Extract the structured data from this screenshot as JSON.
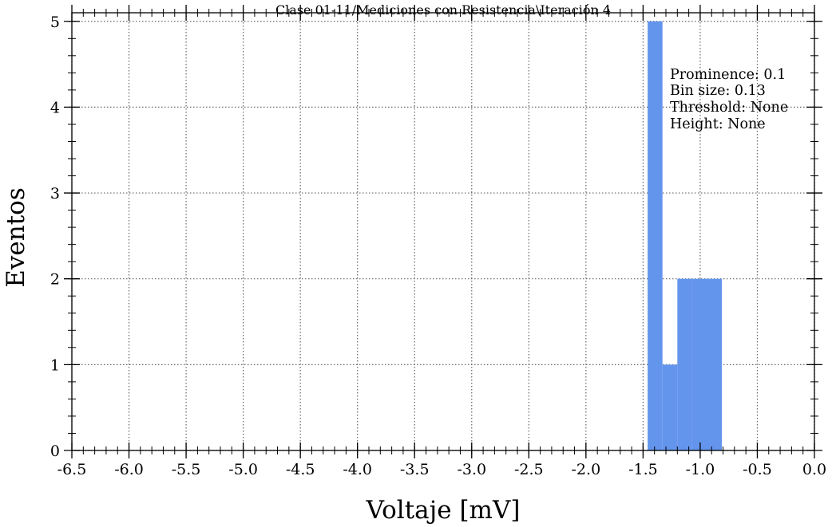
{
  "chart_data": {
    "type": "bar",
    "title": "Clase 01-11/Mediciones con Resistencia\\Iteración 4",
    "xlabel": "Voltaje [mV]",
    "ylabel": "Eventos",
    "xlim": [
      -6.5,
      0.0
    ],
    "ylim": [
      0,
      5.1
    ],
    "xticks": [
      -6.5,
      -6.0,
      -5.5,
      -5.0,
      -4.5,
      -4.0,
      -3.5,
      -3.0,
      -2.5,
      -2.0,
      -1.5,
      -1.0,
      -0.5,
      0.0
    ],
    "xtick_labels": [
      "-6.5",
      "-6.0",
      "-5.5",
      "-5.0",
      "-4.5",
      "-4.0",
      "-3.5",
      "-3.0",
      "-2.5",
      "-2.0",
      "-1.5",
      "-1.0",
      "-0.5",
      "0.0"
    ],
    "yticks": [
      0,
      1,
      2,
      3,
      4,
      5
    ],
    "ytick_labels": [
      "0",
      "1",
      "2",
      "3",
      "4",
      "5"
    ],
    "grid": true,
    "bar_color": "#6495ed",
    "bins": [
      {
        "x0": -1.46,
        "x1": -1.33,
        "count": 5
      },
      {
        "x0": -1.33,
        "x1": -1.2,
        "count": 1
      },
      {
        "x0": -1.2,
        "x1": -1.07,
        "count": 2
      },
      {
        "x0": -1.07,
        "x1": -0.94,
        "count": 2
      },
      {
        "x0": -0.94,
        "x1": -0.81,
        "count": 2
      }
    ],
    "annotations": [
      "Prominence: 0.1",
      "Bin size: 0.13",
      "Threshold: None",
      "Height: None"
    ]
  }
}
